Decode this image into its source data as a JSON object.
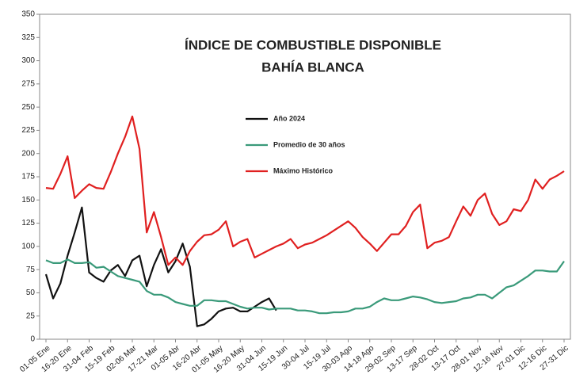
{
  "chart_data": {
    "type": "line",
    "title": "ÍNDICE DE COMBUSTIBLE DISPONIBLE",
    "subtitle": "BAHÍA BLANCA",
    "categories": [
      "01-05 Ene",
      null,
      null,
      "16-20 Ene",
      null,
      null,
      "31-04 Feb",
      null,
      null,
      "15-19 Feb",
      null,
      null,
      "02-06 Mar",
      null,
      null,
      "17-21 Mar",
      null,
      null,
      "01-05 Abr",
      null,
      null,
      "16-20 Abr",
      null,
      null,
      "01-05 May",
      null,
      null,
      "16-20 May",
      null,
      null,
      "31-04 Jun",
      null,
      null,
      "15-19 Jun",
      null,
      null,
      "30-04 Jul",
      null,
      null,
      "15-19 Jul",
      null,
      null,
      "30-03 Ago",
      null,
      null,
      "14-18 Ago",
      null,
      null,
      "29-02 Sep",
      null,
      null,
      "13-17 Sep",
      null,
      null,
      "28-02 Oct",
      null,
      null,
      "13-17 Oct",
      null,
      null,
      "28-01 Nov",
      null,
      null,
      "12-16 Nov",
      null,
      null,
      "27-01 Dic",
      null,
      null,
      "12-16 Dic",
      null,
      null,
      "27-31 Dic"
    ],
    "series": [
      {
        "name": "Año 2024",
        "color": "#111111",
        "values": [
          70,
          44,
          60,
          90,
          115,
          142,
          72,
          66,
          62,
          74,
          80,
          68,
          85,
          90,
          57,
          80,
          97,
          72,
          84,
          103,
          78,
          14,
          16,
          22,
          30,
          33,
          34,
          30,
          30,
          35,
          40,
          44,
          31,
          null,
          null,
          null,
          null,
          null,
          null,
          null,
          null,
          null,
          null,
          null,
          null,
          null,
          null,
          null,
          null,
          null,
          null,
          null,
          null,
          null,
          null,
          null,
          null,
          null,
          null,
          null,
          null,
          null,
          null,
          null,
          null,
          null,
          null,
          null,
          null,
          null,
          null,
          null,
          null
        ]
      },
      {
        "name": "Promedio de 30 años",
        "color": "#3a9a7a",
        "values": [
          85,
          82,
          82,
          86,
          82,
          82,
          83,
          77,
          78,
          73,
          68,
          66,
          64,
          62,
          52,
          48,
          48,
          45,
          40,
          38,
          36,
          36,
          42,
          42,
          41,
          41,
          38,
          35,
          33,
          34,
          34,
          32,
          33,
          33,
          33,
          31,
          31,
          30,
          28,
          28,
          29,
          29,
          30,
          33,
          33,
          35,
          40,
          44,
          42,
          42,
          44,
          46,
          45,
          43,
          40,
          39,
          40,
          41,
          44,
          45,
          48,
          48,
          44,
          50,
          56,
          58,
          63,
          68,
          74,
          74,
          73,
          73,
          84
        ]
      },
      {
        "name": "Máximo Histórico",
        "color": "#e02020",
        "values": [
          163,
          162,
          178,
          197,
          152,
          160,
          167,
          163,
          162,
          180,
          200,
          218,
          240,
          205,
          115,
          137,
          110,
          80,
          88,
          80,
          95,
          105,
          112,
          113,
          118,
          127,
          100,
          105,
          108,
          88,
          92,
          96,
          100,
          103,
          108,
          98,
          102,
          104,
          108,
          112,
          117,
          122,
          127,
          120,
          110,
          103,
          95,
          104,
          113,
          113,
          122,
          137,
          145,
          98,
          104,
          106,
          110,
          127,
          143,
          133,
          150,
          157,
          135,
          123,
          127,
          140,
          138,
          150,
          172,
          162,
          172,
          176,
          181
        ]
      }
    ],
    "ylim": [
      0,
      350
    ],
    "yticks": [
      0,
      25,
      50,
      75,
      100,
      125,
      150,
      175,
      200,
      225,
      250,
      275,
      300,
      325,
      350
    ]
  }
}
